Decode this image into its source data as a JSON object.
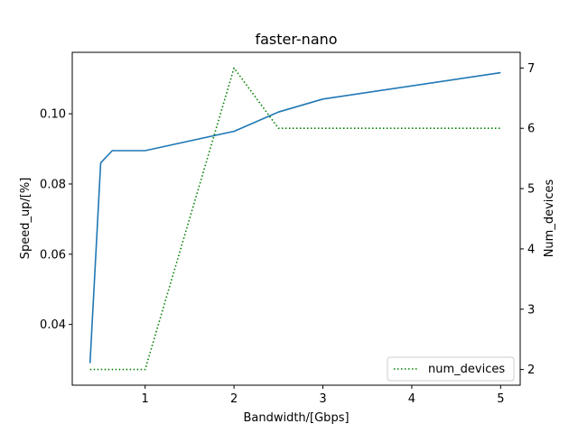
{
  "chart_data": {
    "type": "line",
    "title": "faster-nano",
    "xlabel": "Bandwidth/[Gbps]",
    "ylabel": "Speed_up/[%]",
    "y2label": "Num_devices",
    "xlim": [
      0.18,
      5.22
    ],
    "ylim": [
      0.0227,
      0.1175
    ],
    "y2lim": [
      1.74,
      7.26
    ],
    "xticks": [
      1,
      2,
      3,
      4,
      5
    ],
    "yticks": [
      0.04,
      0.06,
      0.08,
      0.1
    ],
    "ytick_labels": [
      "0.04",
      "0.06",
      "0.08",
      "0.10"
    ],
    "y2ticks": [
      2,
      3,
      4,
      5,
      6,
      7
    ],
    "grid": false,
    "legend_position": "lower right",
    "series": [
      {
        "axis": "left",
        "color": "#1f77b4",
        "style": "solid",
        "x": [
          0.38,
          0.5,
          0.63,
          1.0,
          2.0,
          2.5,
          3.0,
          5.0
        ],
        "values": [
          0.029,
          0.086,
          0.0895,
          0.0895,
          0.095,
          0.1005,
          0.1042,
          0.1117
        ]
      },
      {
        "name": "num_devices",
        "axis": "right",
        "color": "#008000",
        "style": "dotted",
        "x": [
          0.38,
          1.0,
          2.0,
          2.5,
          5.0
        ],
        "values": [
          2,
          2,
          7,
          6,
          6
        ]
      }
    ]
  }
}
